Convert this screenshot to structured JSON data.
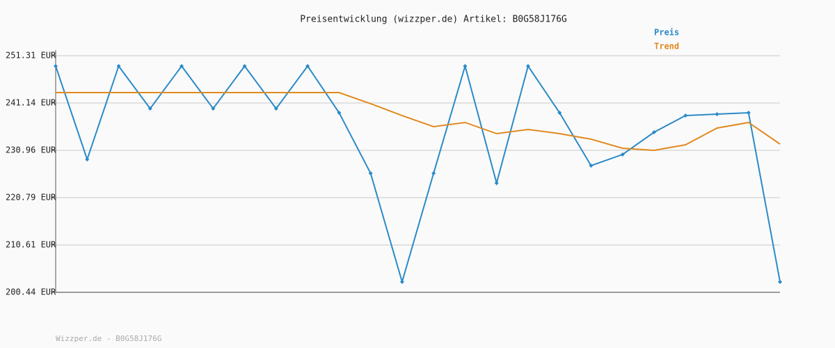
{
  "chart_data": {
    "type": "line",
    "title": "Preisentwicklung (wizzper.de) Artikel: B0G58J176G",
    "footer": "Wizzper.de - B0G58J176G",
    "categories": [
      null,
      null,
      null,
      null,
      null,
      null,
      null,
      null,
      null,
      null,
      null,
      null,
      null,
      null,
      null,
      null,
      null,
      null,
      null,
      null,
      null,
      null,
      null,
      null
    ],
    "series": [
      {
        "name": "Preis",
        "color": "#2a8ac8",
        "markers": true,
        "values": [
          249.07,
          229.02,
          249.07,
          239.94,
          249.07,
          239.94,
          249.07,
          239.94,
          249.07,
          239.04,
          226.03,
          202.69,
          226.03,
          249.07,
          223.93,
          249.07,
          239.04,
          227.67,
          230.07,
          234.85,
          238.44,
          238.74,
          239.04,
          202.69
        ]
      },
      {
        "name": "Trend",
        "color": "#e08a20",
        "markers": false,
        "values": [
          243.38,
          243.38,
          243.38,
          243.38,
          243.38,
          243.38,
          243.38,
          243.38,
          243.38,
          243.38,
          240.99,
          238.44,
          236.05,
          236.95,
          234.55,
          235.45,
          234.55,
          233.36,
          231.41,
          230.96,
          232.16,
          235.75,
          236.95,
          232.31
        ]
      }
    ],
    "ylim": [
      200.44,
      251.31
    ],
    "yticks": [
      {
        "value": 200.44,
        "label": "200.44 EUR"
      },
      {
        "value": 210.61,
        "label": "210.61 EUR"
      },
      {
        "value": 220.79,
        "label": "220.79 EUR"
      },
      {
        "value": 230.96,
        "label": "230.96 EUR"
      },
      {
        "value": 241.14,
        "label": "241.14 EUR"
      },
      {
        "value": 251.31,
        "label": "251.31 EUR"
      }
    ],
    "grid": true,
    "legend": "top-right"
  }
}
